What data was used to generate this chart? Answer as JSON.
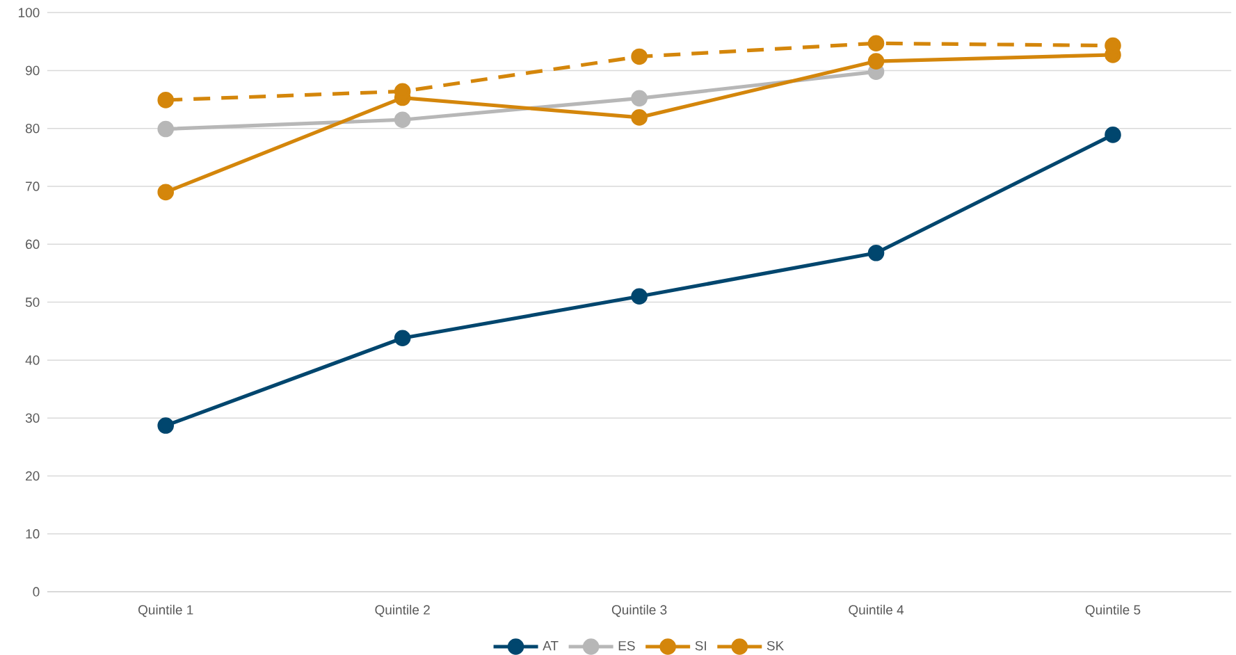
{
  "chart_data": {
    "type": "line",
    "categories": [
      "Quintile 1",
      "Quintile 2",
      "Quintile 3",
      "Quintile 4",
      "Quintile 5"
    ],
    "series": [
      {
        "name": "AT",
        "color": "#00466e",
        "values": [
          28.7,
          43.8,
          51.0,
          58.5,
          78.9
        ]
      },
      {
        "name": "ES",
        "color": "#b7b7b7",
        "values": [
          79.9,
          81.5,
          85.2,
          89.8,
          null
        ]
      },
      {
        "name": "SI",
        "color": "#d4860b",
        "values": [
          69.0,
          85.3,
          81.9,
          91.6,
          92.7
        ]
      },
      {
        "name": "SK",
        "color": "#d4860b",
        "values": [
          84.9,
          86.4,
          92.4,
          94.7,
          94.3
        ],
        "line_style": "dashed"
      }
    ],
    "ylim": [
      0,
      100
    ],
    "yticks": [
      0,
      10,
      20,
      30,
      40,
      50,
      60,
      70,
      80,
      90,
      100
    ],
    "grid": "y",
    "legend": "bottom",
    "marker": "circle",
    "line_style": "solid"
  }
}
